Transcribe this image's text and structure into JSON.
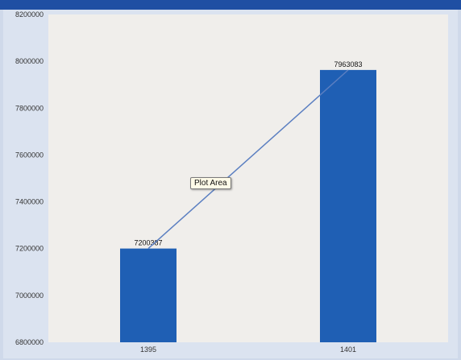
{
  "tooltip": {
    "label": "Plot Area"
  },
  "colors": {
    "bar": "#1f5fb4",
    "trend_line": "#5b7fc1",
    "plot_background": "#f0eeeb",
    "frame": "#dbe3f0",
    "header": "#1f4fa3"
  },
  "chart_data": {
    "type": "bar",
    "categories": [
      "1395",
      "1401"
    ],
    "values": [
      7200387,
      7963083
    ],
    "data_labels": [
      "7200387",
      "7963083"
    ],
    "ylim": [
      6800000,
      8200000
    ],
    "yticks": [
      6800000,
      7000000,
      7200000,
      7400000,
      7600000,
      7800000,
      8000000,
      8200000
    ],
    "ytick_labels": [
      "6800000",
      "7000000",
      "7200000",
      "7400000",
      "7600000",
      "7800000",
      "8000000",
      "8200000"
    ],
    "overlay_line": "connects bar tops",
    "grid": false,
    "legend": "none"
  }
}
